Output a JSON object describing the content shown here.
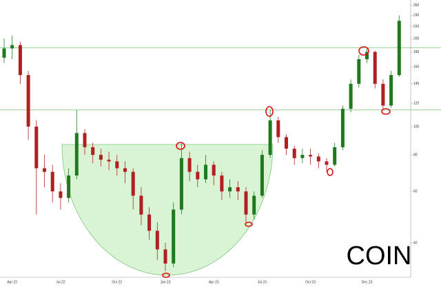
{
  "chart_data": {
    "type": "candlestick",
    "annotation": "COIN",
    "categories": [
      null,
      "Apr 22",
      null,
      null,
      null,
      null,
      null,
      "Jul 22",
      null,
      null,
      null,
      null,
      null,
      null,
      "Oct 22",
      null,
      null,
      null,
      null,
      null,
      "Jan 23",
      null,
      null,
      null,
      null,
      null,
      "Apr 23",
      null,
      null,
      null,
      null,
      null,
      "Jul 23",
      null,
      null,
      null,
      null,
      null,
      "Oct 23",
      null,
      null,
      null,
      null,
      null,
      null,
      "Dec 23",
      null,
      null,
      null,
      null
    ],
    "open": [
      172,
      185,
      190,
      150,
      100,
      72,
      70,
      60,
      57,
      68,
      95,
      85,
      80,
      77,
      76,
      72,
      70,
      58,
      50,
      44,
      38,
      34,
      52,
      78,
      70,
      66,
      74,
      68,
      60,
      62,
      60,
      50,
      58,
      80,
      105,
      92,
      84,
      78,
      80,
      79,
      76,
      74,
      85,
      115,
      140,
      170,
      180,
      140,
      118,
      150
    ],
    "high": [
      200,
      205,
      195,
      155,
      105,
      80,
      74,
      64,
      72,
      114,
      98,
      88,
      84,
      82,
      80,
      76,
      72,
      62,
      53,
      47,
      40,
      55,
      88,
      82,
      74,
      80,
      76,
      70,
      66,
      65,
      62,
      60,
      83,
      114,
      108,
      94,
      86,
      84,
      84,
      81,
      78,
      88,
      118,
      145,
      176,
      187,
      182,
      145,
      155,
      240
    ],
    "low": [
      165,
      170,
      140,
      90,
      50,
      62,
      55,
      52,
      55,
      66,
      80,
      75,
      73,
      71,
      68,
      64,
      52,
      46,
      41,
      35,
      32,
      33,
      50,
      65,
      62,
      64,
      63,
      56,
      57,
      56,
      47,
      48,
      57,
      78,
      88,
      80,
      74,
      75,
      74,
      72,
      70,
      73,
      83,
      112,
      136,
      165,
      135,
      114,
      116,
      148
    ],
    "close": [
      185,
      190,
      150,
      100,
      72,
      70,
      60,
      57,
      68,
      95,
      85,
      80,
      77,
      76,
      72,
      70,
      58,
      50,
      44,
      38,
      34,
      52,
      78,
      70,
      66,
      74,
      68,
      60,
      62,
      60,
      50,
      58,
      80,
      105,
      92,
      84,
      78,
      80,
      79,
      76,
      74,
      85,
      115,
      140,
      170,
      180,
      140,
      118,
      150,
      230
    ],
    "up_color": "#1f7a1f",
    "down_color": "#b02020",
    "reference_lines": [
      186,
      114
    ],
    "reference_color": "#8fce8f",
    "log_scale": true,
    "ylim": [
      31,
      271
    ],
    "yticks": [
      40,
      60,
      80,
      100,
      120,
      140,
      160,
      180,
      200,
      220,
      240,
      260
    ]
  }
}
